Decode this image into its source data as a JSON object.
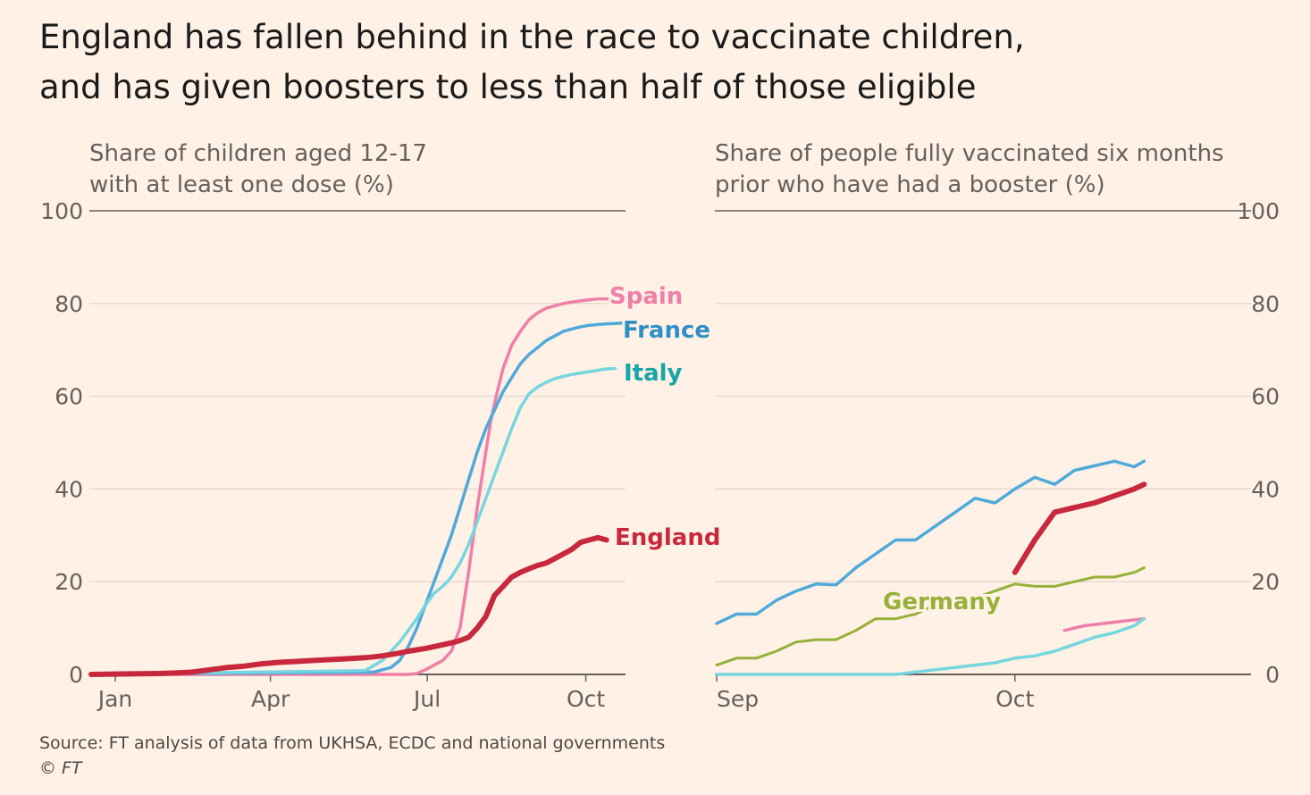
{
  "title_lines": [
    "England has fallen behind in the race to vaccinate children,",
    "and has given boosters to less than half of those eligible"
  ],
  "source": "Source: FT analysis of data from UKHSA, ECDC and national governments",
  "copyright": "© FT",
  "colors": {
    "background": "#fff1e5",
    "Spain": "#ef7fa8",
    "France": "#4fa9d9",
    "Italy": "#76d6df",
    "England": "#c8283c",
    "Germany": "#96b13a",
    "label_Italy": "#16a6a8",
    "label_France": "#2e8fc7"
  },
  "chart_data": [
    {
      "type": "line",
      "subtitle_lines": [
        "Share of children aged 12-17",
        "with at least one dose (%)"
      ],
      "x_unit": "day of year 2021",
      "xticks": [
        {
          "label": "Jan",
          "x": 15
        },
        {
          "label": "Apr",
          "x": 105
        },
        {
          "label": "Jul",
          "x": 196
        },
        {
          "label": "Oct",
          "x": 288
        }
      ],
      "xlim": [
        1,
        310
      ],
      "ylim": [
        0,
        100
      ],
      "yticks": [
        0,
        20,
        40,
        60,
        80,
        100
      ],
      "ytick_side": "left",
      "grid": true,
      "series": [
        {
          "name": "Spain",
          "label": "Spain",
          "x": [
            1,
            170,
            185,
            190,
            195,
            200,
            205,
            210,
            215,
            220,
            225,
            230,
            233,
            236,
            240,
            245,
            250,
            255,
            260,
            265,
            270,
            275,
            280,
            285,
            290,
            295,
            300,
            305
          ],
          "y": [
            0,
            0,
            0,
            0.2,
            1,
            2,
            3,
            5,
            10,
            22,
            36,
            48,
            55,
            60,
            66,
            71,
            74,
            76.5,
            78,
            79,
            79.5,
            80,
            80.3,
            80.6,
            80.8,
            81,
            81,
            81
          ]
        },
        {
          "name": "France",
          "label": "France",
          "x": [
            1,
            165,
            175,
            180,
            185,
            190,
            195,
            200,
            205,
            210,
            215,
            220,
            225,
            230,
            235,
            240,
            245,
            250,
            255,
            260,
            265,
            270,
            275,
            280,
            285,
            290,
            295,
            300,
            305,
            310
          ],
          "y": [
            0,
            0.5,
            1.5,
            3,
            6,
            10,
            15,
            20,
            25,
            30,
            36,
            42,
            48,
            53,
            57,
            61,
            64,
            67,
            69,
            70.5,
            72,
            73,
            74,
            74.5,
            75,
            75.3,
            75.5,
            75.6,
            75.7,
            75.8
          ]
        },
        {
          "name": "Italy",
          "label": "Italy",
          "x": [
            1,
            160,
            170,
            180,
            190,
            195,
            200,
            205,
            210,
            215,
            220,
            225,
            230,
            235,
            240,
            245,
            250,
            255,
            260,
            265,
            270,
            275,
            280,
            285,
            290,
            295,
            300,
            305
          ],
          "y": [
            0,
            0.8,
            3,
            7,
            12,
            15,
            17.5,
            19,
            21,
            24,
            28,
            33,
            38,
            43,
            48,
            53,
            57.5,
            60.5,
            62,
            63,
            63.8,
            64.3,
            64.7,
            65,
            65.3,
            65.6,
            65.9,
            66
          ]
        },
        {
          "name": "England",
          "label": "England",
          "x": [
            1,
            40,
            50,
            60,
            70,
            80,
            90,
            100,
            110,
            120,
            130,
            140,
            150,
            160,
            165,
            170,
            175,
            180,
            185,
            190,
            195,
            200,
            205,
            210,
            215,
            220,
            225,
            230,
            235,
            240,
            245,
            250,
            255,
            260,
            265,
            270,
            275,
            280,
            285,
            290,
            295,
            300
          ],
          "y": [
            0,
            0.2,
            0.3,
            0.5,
            1,
            1.5,
            1.8,
            2.3,
            2.6,
            2.8,
            3,
            3.2,
            3.4,
            3.6,
            3.8,
            4,
            4.3,
            4.6,
            5,
            5.3,
            5.6,
            6,
            6.4,
            6.8,
            7.3,
            8,
            10,
            12.5,
            17,
            19,
            21,
            22,
            22.8,
            23.5,
            24,
            25,
            26,
            27,
            28.5,
            29,
            29.5,
            29
          ]
        }
      ]
    },
    {
      "type": "line",
      "subtitle_lines": [
        "Share of people fully vaccinated six months",
        "prior who have had a booster (%)"
      ],
      "x_unit": "day of 2021 from 1 Sep",
      "xticks": [
        {
          "label": "Sep",
          "x": 1
        },
        {
          "label": "Oct",
          "x": 31
        }
      ],
      "xlim": [
        1,
        49
      ],
      "ylim": [
        0,
        100
      ],
      "yticks": [
        0,
        20,
        40,
        60,
        80,
        100
      ],
      "ytick_side": "right",
      "grid": true,
      "series": [
        {
          "name": "",
          "color_key": "France",
          "x": [
            1,
            3,
            5,
            7,
            9,
            11,
            13,
            15,
            17,
            19,
            21,
            23,
            25,
            27,
            29,
            31,
            33,
            35,
            37,
            39,
            41,
            43,
            44
          ],
          "y": [
            11,
            13,
            13,
            16,
            18,
            19.5,
            19.3,
            23,
            26,
            29,
            29,
            32,
            35,
            38,
            37,
            40,
            42.5,
            41,
            44,
            45,
            46,
            44.8,
            46
          ]
        },
        {
          "name": "",
          "color_key": "England",
          "x": [
            31,
            33,
            35,
            37,
            39,
            41,
            43,
            44
          ],
          "y": [
            22,
            29,
            35,
            36,
            37,
            38.5,
            40,
            41
          ]
        },
        {
          "name": "Germany",
          "label": "Germany",
          "color_key": "Germany",
          "x": [
            1,
            3,
            5,
            7,
            9,
            11,
            13,
            15,
            17,
            19,
            21,
            23,
            25,
            27,
            29,
            31,
            33,
            35,
            37,
            39,
            41,
            43,
            44
          ],
          "y": [
            2,
            3.5,
            3.5,
            5,
            7,
            7.5,
            7.5,
            9.5,
            12,
            12,
            13,
            15,
            16,
            16.5,
            18,
            19.5,
            19,
            19,
            20,
            21,
            21,
            22,
            23
          ]
        },
        {
          "name": "",
          "color_key": "Spain",
          "x": [
            36,
            38,
            40,
            42,
            44
          ],
          "y": [
            9.5,
            10.5,
            11,
            11.5,
            12
          ]
        },
        {
          "name": "",
          "color_key": "Italy",
          "x": [
            1,
            19,
            21,
            23,
            25,
            27,
            29,
            31,
            33,
            35,
            37,
            39,
            41,
            43,
            44
          ],
          "y": [
            0,
            0,
            0.5,
            1,
            1.5,
            2,
            2.5,
            3.5,
            4,
            5,
            6.5,
            8,
            9,
            10.5,
            12
          ]
        }
      ]
    }
  ]
}
